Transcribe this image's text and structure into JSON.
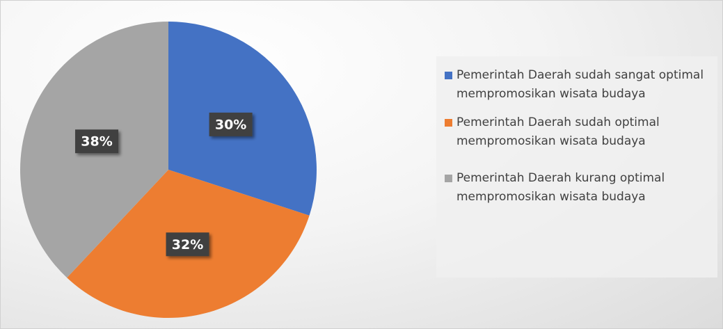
{
  "chart_data": {
    "type": "pie",
    "categories": [
      "Pemerintah Daerah sudah sangat optimal mempromosikan wisata budaya",
      "Pemerintah Daerah sudah optimal mempromosikan wisata budaya",
      "Pemerintah Daerah kurang optimal mempromosikan wisata budaya"
    ],
    "values": [
      30,
      32,
      38
    ],
    "value_labels": [
      "30%",
      "32%",
      "38%"
    ],
    "colors": [
      "#4472c4",
      "#ed7d31",
      "#a5a5a5"
    ]
  }
}
